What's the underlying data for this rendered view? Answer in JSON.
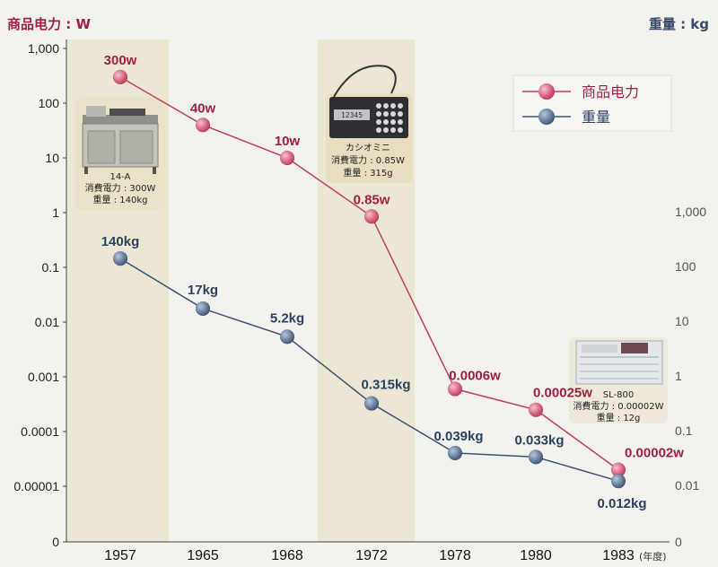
{
  "units": {
    "left": "商品电力 : W",
    "right": "重量 : kg",
    "year_suffix": "(年度)"
  },
  "chart_data": {
    "type": "line",
    "categories": [
      "1957",
      "1965",
      "1968",
      "1972",
      "1978",
      "1980",
      "1983"
    ],
    "left_axis": {
      "scale": "log",
      "ticks": [
        "1,000",
        "100",
        "10",
        "1",
        "0.1",
        "0.01",
        "0.001",
        "0.0001",
        "0.00001",
        "0"
      ]
    },
    "right_axis": {
      "scale": "log",
      "ticks": [
        "1,000",
        "100",
        "10",
        "1",
        "0.1",
        "0.01",
        "0"
      ]
    },
    "series": [
      {
        "name": "商品电力",
        "axis": "left",
        "color": "#c0405e",
        "values": [
          300,
          40,
          10,
          0.85,
          0.0006,
          0.00025,
          2e-05
        ],
        "labels": [
          "300w",
          "40w",
          "10w",
          "0.85w",
          "0.0006w",
          "0.00025w",
          "0.00002w"
        ]
      },
      {
        "name": "重量",
        "axis": "right",
        "color": "#3d5270",
        "values": [
          140,
          17,
          5.2,
          0.315,
          0.039,
          0.033,
          0.012
        ],
        "labels": [
          "140kg",
          "17kg",
          "5.2kg",
          "0.315kg",
          "0.039kg",
          "0.033kg",
          "0.012kg"
        ]
      }
    ],
    "legend_position": "top-right",
    "annotations": [
      {
        "model": "14-A",
        "lines": [
          "消費電力 : 300W",
          "重量 : 140kg"
        ]
      },
      {
        "model": "カシオミニ",
        "lines": [
          "消費電力 : 0.85W",
          "重量 : 315g"
        ]
      },
      {
        "model": "SL-800",
        "lines": [
          "消費電力 : 0.00002W",
          "重量 : 12g"
        ]
      }
    ]
  }
}
